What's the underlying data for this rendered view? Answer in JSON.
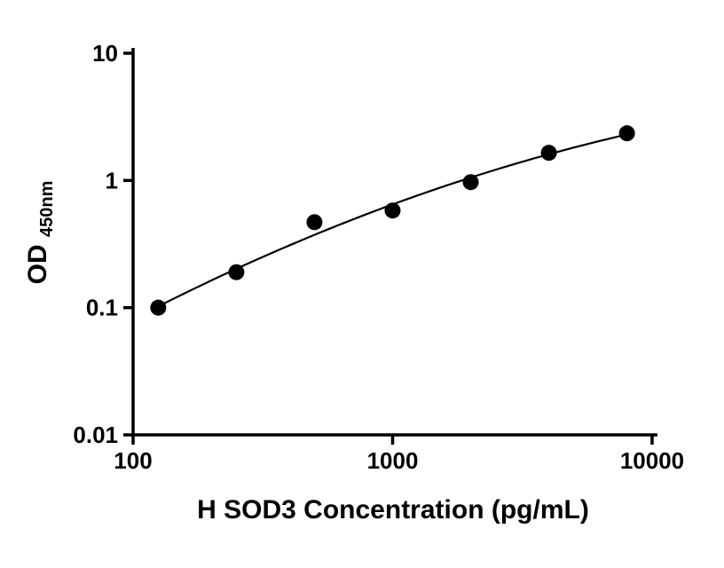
{
  "chart_data": {
    "type": "scatter",
    "title": "",
    "xlabel": "H SOD3 Concentration (pg/mL)",
    "ylabel_main": "OD",
    "ylabel_sub": "450nm",
    "x": [
      125,
      250,
      500,
      1000,
      2000,
      4000,
      8000
    ],
    "y": [
      0.1,
      0.19,
      0.47,
      0.58,
      0.97,
      1.65,
      2.35
    ],
    "x_scale": "log",
    "y_scale": "log",
    "xlim": [
      100,
      10000
    ],
    "ylim": [
      0.01,
      10
    ],
    "x_ticks": [
      100,
      1000,
      10000
    ],
    "x_tick_labels": [
      "100",
      "1000",
      "10000"
    ],
    "y_ticks": [
      10,
      1,
      0.1,
      0.01
    ],
    "y_tick_labels": [
      "10",
      "1",
      "0.1",
      "0.01"
    ],
    "fit": "quadratic-loglog",
    "legend": "none",
    "grid": "off",
    "marker_color": "#000000",
    "line_color": "#000000",
    "axis_color": "#000000",
    "background_color": "#ffffff"
  }
}
